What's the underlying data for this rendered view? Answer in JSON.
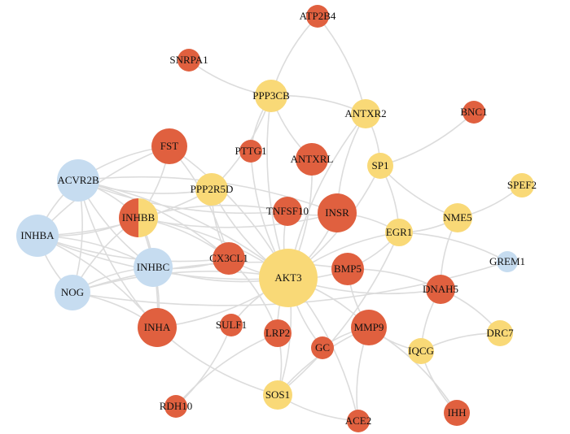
{
  "nodes": [
    {
      "label": "ATP2B4",
      "colors": [
        "#e0603f"
      ]
    },
    {
      "label": "SNRPA1",
      "colors": [
        "#e0603f"
      ]
    },
    {
      "label": "PPP3CB",
      "colors": [
        "#f9d977"
      ]
    },
    {
      "label": "ANTXR2",
      "colors": [
        "#f9d977"
      ]
    },
    {
      "label": "BNC1",
      "colors": [
        "#e0603f"
      ]
    },
    {
      "label": "FST",
      "colors": [
        "#e0603f"
      ]
    },
    {
      "label": "PTTG1",
      "colors": [
        "#e0603f"
      ]
    },
    {
      "label": "ANTXRL",
      "colors": [
        "#e0603f"
      ]
    },
    {
      "label": "SP1",
      "colors": [
        "#f9d977"
      ]
    },
    {
      "label": "SPEF2",
      "colors": [
        "#f9d977"
      ]
    },
    {
      "label": "ACVR2B",
      "colors": [
        "#c6dcf0"
      ]
    },
    {
      "label": "PPP2R5D",
      "colors": [
        "#f9d977"
      ]
    },
    {
      "label": "TNFSF10",
      "colors": [
        "#e0603f"
      ]
    },
    {
      "label": "INSR",
      "colors": [
        "#e0603f"
      ]
    },
    {
      "label": "INHBB",
      "colors": [
        "#e0603f",
        "#f9d977"
      ]
    },
    {
      "label": "NME5",
      "colors": [
        "#f9d977"
      ]
    },
    {
      "label": "EGR1",
      "colors": [
        "#f9d977"
      ]
    },
    {
      "label": "INHBA",
      "colors": [
        "#c6dcf0"
      ]
    },
    {
      "label": "CX3CL1",
      "colors": [
        "#e0603f"
      ]
    },
    {
      "label": "INHBC",
      "colors": [
        "#c6dcf0"
      ]
    },
    {
      "label": "AKT3",
      "colors": [
        "#f9d977"
      ]
    },
    {
      "label": "BMP5",
      "colors": [
        "#e0603f"
      ]
    },
    {
      "label": "GREM1",
      "colors": [
        "#c6dcf0"
      ]
    },
    {
      "label": "NOG",
      "colors": [
        "#c6dcf0"
      ]
    },
    {
      "label": "DNAH5",
      "colors": [
        "#e0603f"
      ]
    },
    {
      "label": "INHA",
      "colors": [
        "#e0603f"
      ]
    },
    {
      "label": "SULF1",
      "colors": [
        "#e0603f"
      ]
    },
    {
      "label": "LRP2",
      "colors": [
        "#e0603f"
      ]
    },
    {
      "label": "MMP9",
      "colors": [
        "#e0603f"
      ]
    },
    {
      "label": "GC",
      "colors": [
        "#e0603f"
      ]
    },
    {
      "label": "IQCG",
      "colors": [
        "#f9d977"
      ]
    },
    {
      "label": "DRC7",
      "colors": [
        "#f9d977"
      ]
    },
    {
      "label": "SOS1",
      "colors": [
        "#f9d977"
      ]
    },
    {
      "label": "RDH10",
      "colors": [
        "#e0603f"
      ]
    },
    {
      "label": "ACE2",
      "colors": [
        "#e0603f"
      ]
    },
    {
      "label": "IHH",
      "colors": [
        "#e0603f"
      ]
    }
  ]
}
